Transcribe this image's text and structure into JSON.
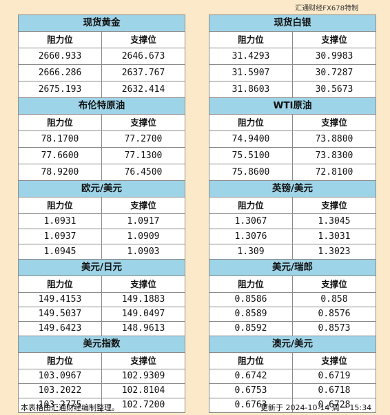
{
  "credit": "汇通财经FX678特制",
  "header_resistance": "阻力位",
  "header_support": "支撑位",
  "left": [
    {
      "title": "现货黄金",
      "row_h": 23,
      "rows": [
        [
          "2660.933",
          "2646.673"
        ],
        [
          "2666.286",
          "2637.767"
        ],
        [
          "2675.193",
          "2632.414"
        ]
      ]
    },
    {
      "title": "布伦特原油",
      "row_h": 23,
      "rows": [
        [
          "78.1700",
          "77.2700"
        ],
        [
          "77.6600",
          "77.1300"
        ],
        [
          "78.9200",
          "76.4500"
        ]
      ]
    },
    {
      "title": "欧元/美元",
      "row_h": 21,
      "rows": [
        [
          "1.0931",
          "1.0917"
        ],
        [
          "1.0937",
          "1.0909"
        ],
        [
          "1.0945",
          "1.0903"
        ]
      ]
    },
    {
      "title": "美元/日元",
      "row_h": 20,
      "rows": [
        [
          "149.4153",
          "149.1883"
        ],
        [
          "149.5037",
          "149.0497"
        ],
        [
          "149.6423",
          "148.9613"
        ]
      ]
    },
    {
      "title": "美元指数",
      "row_h": 20,
      "rows": [
        [
          "103.0967",
          "102.9309"
        ],
        [
          "103.2022",
          "102.8104"
        ],
        [
          "103.2775",
          "102.7200"
        ]
      ]
    }
  ],
  "right": [
    {
      "title": "现货白银",
      "row_h": 23,
      "rows": [
        [
          "31.4293",
          "30.9983"
        ],
        [
          "31.5907",
          "30.7287"
        ],
        [
          "31.8603",
          "30.5673"
        ]
      ]
    },
    {
      "title": "WTI原油",
      "row_h": 23,
      "rows": [
        [
          "74.9400",
          "73.8800"
        ],
        [
          "75.5100",
          "73.8300"
        ],
        [
          "75.8600",
          "72.8100"
        ]
      ]
    },
    {
      "title": "英镑/美元",
      "row_h": 21,
      "rows": [
        [
          "1.3067",
          "1.3045"
        ],
        [
          "1.3076",
          "1.3031"
        ],
        [
          "1.309",
          "1.3023"
        ]
      ]
    },
    {
      "title": "美元/瑞郎",
      "row_h": 20,
      "rows": [
        [
          "0.8586",
          "0.858"
        ],
        [
          "0.8589",
          "0.8576"
        ],
        [
          "0.8592",
          "0.8573"
        ]
      ]
    },
    {
      "title": "澳元/美元",
      "row_h": 20,
      "rows": [
        [
          "0.6742",
          "0.6719"
        ],
        [
          "0.6753",
          "0.6718"
        ],
        [
          "0.6763",
          "0.6728"
        ]
      ]
    }
  ],
  "footer": {
    "note": "本表格由汇通财经编制整理。",
    "updated": "更新于 2024-10-14 周一 15:34"
  }
}
